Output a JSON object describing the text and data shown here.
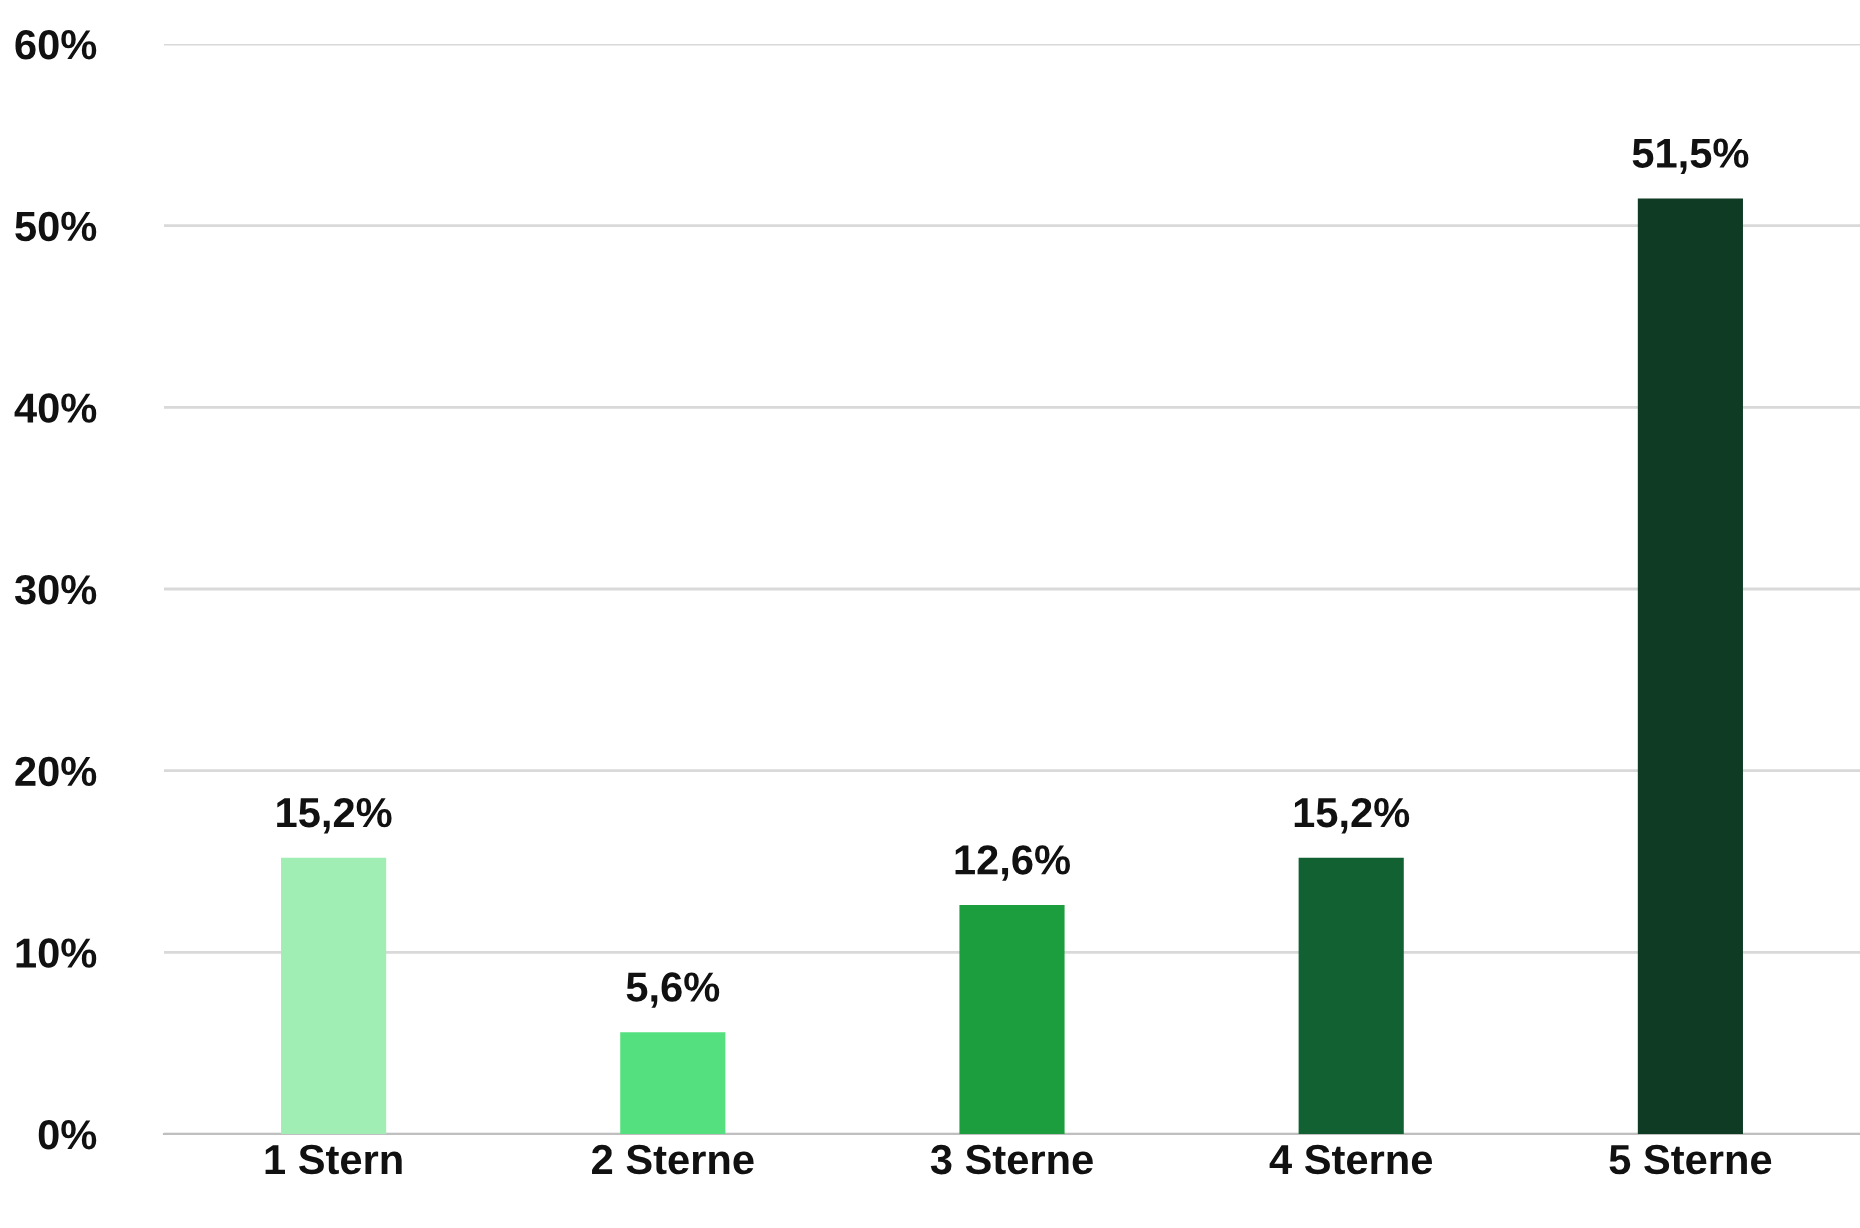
{
  "chart_data": {
    "type": "bar",
    "categories": [
      "1 Stern",
      "2 Sterne",
      "3 Sterne",
      "4 Sterne",
      "5 Sterne"
    ],
    "values": [
      15.2,
      5.6,
      12.6,
      15.2,
      51.5
    ],
    "colors": [
      "#a0eeb4",
      "#55e07f",
      "#1c9e3e",
      "#126132",
      "#0f3a24"
    ],
    "value_labels": [
      "15,2%",
      "5,6%",
      "12,6%",
      "15,2%",
      "51,5%"
    ],
    "ylim": [
      0,
      60
    ],
    "yticks": [
      {
        "value": 0,
        "label": "0%"
      },
      {
        "value": 10,
        "label": "10%"
      },
      {
        "value": 20,
        "label": "20%"
      },
      {
        "value": 30,
        "label": "30%"
      },
      {
        "value": 40,
        "label": "40%"
      },
      {
        "value": 50,
        "label": "50%"
      },
      {
        "value": 60,
        "label": "60%"
      }
    ],
    "grid": "y"
  }
}
